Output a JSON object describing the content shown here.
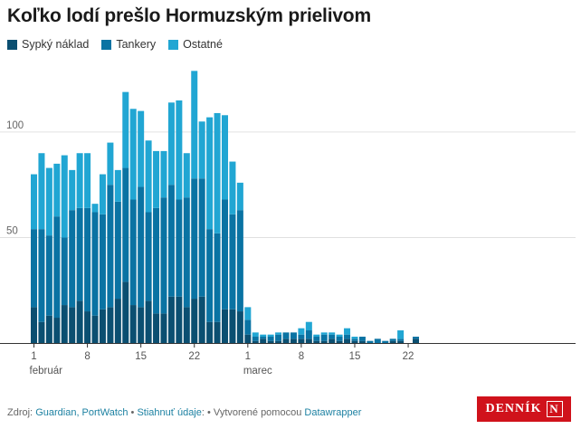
{
  "title": "Koľko lodí prešlo Hormuzským prielivom",
  "legend": [
    {
      "label": "Sypký náklad",
      "color": "#0b4f71"
    },
    {
      "label": "Tankery",
      "color": "#0a73a3"
    },
    {
      "label": "Ostatné",
      "color": "#21a6d3"
    }
  ],
  "footer": {
    "source_prefix": "Zdroj: ",
    "source": "Guardian, PortWatch",
    "sep1": " • ",
    "download": "Stiahnuť údaje",
    "sep2": ": • Vytvorené pomocou ",
    "tool": "Datawrapper"
  },
  "logo": {
    "text": "DENNÍK",
    "mark": "N"
  },
  "chart_data": {
    "type": "bar",
    "stacked": true,
    "title": "Koľko lodí prešlo Hormuzským prielivom",
    "xlabel": "",
    "ylabel": "",
    "ylim": [
      0,
      130
    ],
    "y_ticks": [
      50,
      100
    ],
    "grid": true,
    "legend_position": "top-left",
    "x_tick_labels": [
      {
        "index": 0,
        "label": "1",
        "sub": "február"
      },
      {
        "index": 7,
        "label": "8"
      },
      {
        "index": 14,
        "label": "15"
      },
      {
        "index": 21,
        "label": "22"
      },
      {
        "index": 28,
        "label": "1",
        "sub": "marec"
      },
      {
        "index": 35,
        "label": "8"
      },
      {
        "index": 42,
        "label": "15"
      },
      {
        "index": 49,
        "label": "22"
      }
    ],
    "series": [
      {
        "name": "Sypký náklad",
        "color": "#0b4f71",
        "values": [
          17,
          10,
          13,
          12,
          18,
          17,
          20,
          15,
          13,
          16,
          17,
          21,
          29,
          18,
          17,
          20,
          14,
          14,
          22,
          22,
          17,
          21,
          22,
          10,
          10,
          16,
          16,
          15,
          4,
          1,
          2,
          1,
          1,
          2,
          2,
          2,
          2,
          1,
          1,
          2,
          1,
          2,
          1,
          1,
          0,
          0,
          0,
          1,
          1,
          0,
          2
        ]
      },
      {
        "name": "Tankery",
        "color": "#0a73a3",
        "values": [
          37,
          44,
          38,
          48,
          32,
          46,
          44,
          49,
          49,
          45,
          58,
          46,
          54,
          50,
          57,
          42,
          50,
          55,
          53,
          46,
          52,
          57,
          56,
          44,
          42,
          52,
          45,
          48,
          7,
          2,
          1,
          2,
          3,
          3,
          3,
          2,
          4,
          2,
          3,
          2,
          2,
          2,
          1,
          2,
          1,
          2,
          1,
          1,
          1,
          0,
          1
        ]
      },
      {
        "name": "Ostatné",
        "color": "#21a6d3",
        "values": [
          26,
          36,
          32,
          25,
          39,
          19,
          26,
          26,
          4,
          19,
          20,
          15,
          36,
          43,
          36,
          34,
          27,
          22,
          39,
          47,
          21,
          51,
          27,
          53,
          57,
          40,
          25,
          13,
          6,
          2,
          1,
          1,
          1,
          0,
          0,
          3,
          4,
          1,
          1,
          1,
          1,
          3,
          1,
          0,
          0,
          0,
          0,
          0,
          4,
          0,
          0
        ]
      }
    ]
  }
}
